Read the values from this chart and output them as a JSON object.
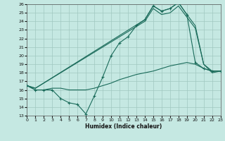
{
  "xlabel": "Humidex (Indice chaleur)",
  "bg_color": "#c5e8e2",
  "grid_color": "#a0c8c0",
  "line_color": "#1a6b5a",
  "xlim": [
    0,
    23
  ],
  "ylim": [
    13,
    26
  ],
  "xticks": [
    0,
    1,
    2,
    3,
    4,
    5,
    6,
    7,
    8,
    9,
    10,
    11,
    12,
    13,
    14,
    15,
    16,
    17,
    18,
    19,
    20,
    21,
    22,
    23
  ],
  "yticks": [
    13,
    14,
    15,
    16,
    17,
    18,
    19,
    20,
    21,
    22,
    23,
    24,
    25,
    26
  ],
  "line_zigzag_x": [
    0,
    1,
    2,
    3,
    4,
    5,
    6,
    7,
    8,
    9,
    10,
    11,
    12,
    13,
    14,
    15,
    16,
    17,
    18,
    19,
    20,
    21,
    22,
    23
  ],
  "line_zigzag_y": [
    16.5,
    16.0,
    16.0,
    16.0,
    15.0,
    14.5,
    14.3,
    13.2,
    15.3,
    17.5,
    20.0,
    21.5,
    22.2,
    23.5,
    24.2,
    25.8,
    25.2,
    25.5,
    26.2,
    24.8,
    19.2,
    18.5,
    18.2,
    18.2
  ],
  "line_flat_x": [
    0,
    1,
    2,
    3,
    4,
    5,
    6,
    7,
    8,
    9,
    10,
    11,
    12,
    13,
    14,
    15,
    16,
    17,
    18,
    19,
    20,
    21,
    22,
    23
  ],
  "line_flat_y": [
    16.5,
    16.0,
    16.0,
    16.2,
    16.2,
    16.0,
    16.0,
    16.0,
    16.2,
    16.5,
    16.8,
    17.2,
    17.5,
    17.8,
    18.0,
    18.2,
    18.5,
    18.8,
    19.0,
    19.2,
    19.0,
    18.5,
    18.2,
    18.2
  ],
  "line_upper1_x": [
    0,
    1,
    14,
    15,
    16,
    17,
    18,
    19,
    20,
    21,
    22,
    23
  ],
  "line_upper1_y": [
    16.5,
    16.2,
    24.2,
    25.8,
    25.2,
    25.5,
    26.2,
    24.8,
    23.5,
    19.0,
    18.2,
    18.2
  ],
  "line_upper2_x": [
    0,
    1,
    14,
    15,
    16,
    17,
    18,
    19,
    20,
    21,
    22,
    23
  ],
  "line_upper2_y": [
    16.5,
    16.2,
    24.0,
    25.5,
    24.8,
    25.0,
    25.8,
    24.5,
    23.2,
    19.0,
    18.0,
    18.2
  ]
}
